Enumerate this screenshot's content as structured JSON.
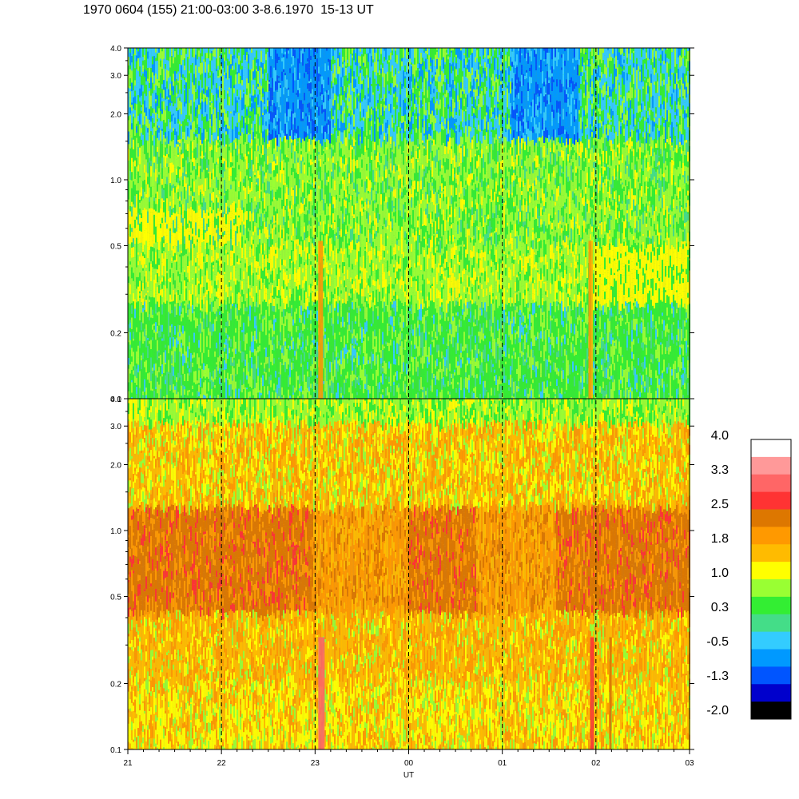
{
  "title": "1970 0604 (155) 21:00-03:00 3-8.6.1970  15-13 UT",
  "chart_data": {
    "type": "heatmap",
    "panels": [
      {
        "name": "upper",
        "yticks": [
          "0.1",
          "0.2",
          "0.5",
          "1.0",
          "2.0",
          "3.0",
          "4.0"
        ],
        "ytick_values": [
          0.1,
          0.2,
          0.5,
          1.0,
          2.0,
          3.0,
          4.0
        ],
        "ylim": [
          0.1,
          4.0
        ],
        "yscale": "log",
        "dominant_level_description": "mostly 0.3 to 1.0 (green/yellow-green); -0.5 to -1.3 near 2-4 (blue)"
      },
      {
        "name": "lower",
        "yticks": [
          "0.1",
          "0.2",
          "0.5",
          "1.0",
          "2.0",
          "3.0",
          "4.0"
        ],
        "ytick_values": [
          0.1,
          0.2,
          0.5,
          1.0,
          2.0,
          3.0,
          4.0
        ],
        "ylim": [
          0.1,
          4.0
        ],
        "yscale": "log",
        "dominant_level_description": "mostly 1.0 to 2.5 (yellow/orange); band of 2.2 near 0.5-1.0"
      }
    ],
    "x_ticks": [
      "21",
      "22",
      "23",
      "00",
      "01",
      "02",
      "03"
    ],
    "xlabel": "UT",
    "hour_dividers": [
      "22",
      "23",
      "00",
      "01",
      "02"
    ],
    "colorbar": {
      "labels": [
        "4.0",
        "3.3",
        "2.5",
        "1.8",
        "1.0",
        "0.3",
        "-0.5",
        "-1.3",
        "-2.0"
      ],
      "colors": [
        "#ffffff",
        "#ff9999",
        "#ff6666",
        "#ff3333",
        "#dd7700",
        "#ff9900",
        "#ffbb00",
        "#ffff00",
        "#99ff33",
        "#33ee33",
        "#44dd88",
        "#33ccff",
        "#0099ff",
        "#0055ff",
        "#0000cc",
        "#000000"
      ]
    }
  }
}
